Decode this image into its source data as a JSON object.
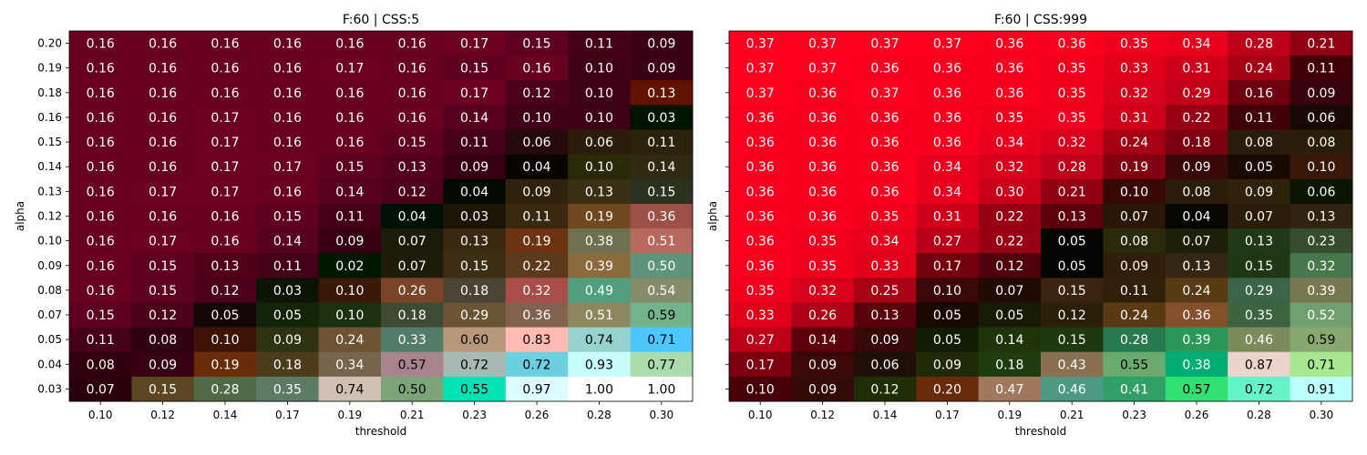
{
  "chart_data": [
    {
      "type": "heatmap",
      "title": "F:60 | CSS:5",
      "xlabel": "threshold",
      "ylabel": "alpha",
      "x_categories": [
        "0.10",
        "0.12",
        "0.14",
        "0.17",
        "0.19",
        "0.21",
        "0.23",
        "0.26",
        "0.28",
        "0.30"
      ],
      "y_categories": [
        "0.20",
        "0.19",
        "0.18",
        "0.16",
        "0.15",
        "0.14",
        "0.13",
        "0.12",
        "0.10",
        "0.09",
        "0.08",
        "0.07",
        "0.05",
        "0.04",
        "0.03"
      ],
      "values": [
        [
          0.16,
          0.16,
          0.16,
          0.16,
          0.16,
          0.16,
          0.17,
          0.15,
          0.11,
          0.09
        ],
        [
          0.16,
          0.16,
          0.16,
          0.16,
          0.17,
          0.16,
          0.15,
          0.16,
          0.1,
          0.09
        ],
        [
          0.16,
          0.16,
          0.16,
          0.16,
          0.16,
          0.16,
          0.17,
          0.12,
          0.1,
          0.13
        ],
        [
          0.16,
          0.16,
          0.17,
          0.16,
          0.16,
          0.16,
          0.14,
          0.1,
          0.1,
          0.03
        ],
        [
          0.16,
          0.16,
          0.17,
          0.16,
          0.16,
          0.15,
          0.11,
          0.06,
          0.06,
          0.11
        ],
        [
          0.16,
          0.16,
          0.17,
          0.17,
          0.15,
          0.13,
          0.09,
          0.04,
          0.1,
          0.14
        ],
        [
          0.16,
          0.17,
          0.17,
          0.16,
          0.14,
          0.12,
          0.04,
          0.09,
          0.13,
          0.15
        ],
        [
          0.16,
          0.16,
          0.16,
          0.15,
          0.11,
          0.04,
          0.03,
          0.11,
          0.19,
          0.36
        ],
        [
          0.16,
          0.17,
          0.16,
          0.14,
          0.09,
          0.07,
          0.13,
          0.19,
          0.38,
          0.51
        ],
        [
          0.16,
          0.15,
          0.13,
          0.11,
          0.02,
          0.07,
          0.15,
          0.22,
          0.39,
          0.5
        ],
        [
          0.16,
          0.15,
          0.12,
          0.03,
          0.1,
          0.26,
          0.18,
          0.32,
          0.49,
          0.54
        ],
        [
          0.15,
          0.12,
          0.05,
          0.05,
          0.1,
          0.18,
          0.29,
          0.36,
          0.51,
          0.59
        ],
        [
          0.11,
          0.08,
          0.1,
          0.09,
          0.24,
          0.33,
          0.6,
          0.83,
          0.74,
          0.71
        ],
        [
          0.08,
          0.09,
          0.19,
          0.18,
          0.34,
          0.57,
          0.72,
          0.72,
          0.93,
          0.77
        ],
        [
          0.07,
          0.15,
          0.28,
          0.35,
          0.74,
          0.5,
          0.55,
          0.97,
          1.0,
          1.0
        ]
      ],
      "cell_colors": [
        [
          "#680020",
          "#680020",
          "#680020",
          "#680020",
          "#680020",
          "#680020",
          "#6c0020",
          "#600020",
          "#440018",
          "#3a0014"
        ],
        [
          "#680020",
          "#680020",
          "#680020",
          "#680020",
          "#6c0020",
          "#680020",
          "#600020",
          "#680020",
          "#400018",
          "#3a0014"
        ],
        [
          "#680020",
          "#680020",
          "#680020",
          "#680020",
          "#680020",
          "#680020",
          "#6c0020",
          "#4c001c",
          "#3e0016",
          "#601400"
        ],
        [
          "#680020",
          "#680020",
          "#6c0020",
          "#680020",
          "#680020",
          "#680020",
          "#580020",
          "#3e0016",
          "#3e0016",
          "#001400"
        ],
        [
          "#680020",
          "#680020",
          "#6c0020",
          "#680020",
          "#680020",
          "#600020",
          "#440018",
          "#260a0a",
          "#2a1e0a",
          "#2a220a"
        ],
        [
          "#680020",
          "#680020",
          "#6c0020",
          "#6c0020",
          "#600020",
          "#52001c",
          "#360012",
          "#080402",
          "#2a2a0a",
          "#302a12"
        ],
        [
          "#680020",
          "#6c0020",
          "#6c0020",
          "#680020",
          "#580020",
          "#4c001c",
          "#040a02",
          "#30220a",
          "#3a3014",
          "#2a3220"
        ],
        [
          "#680020",
          "#680020",
          "#680020",
          "#600020",
          "#440018",
          "#001004",
          "#1c1406",
          "#3a2810",
          "#6e4820",
          "#9c5048"
        ],
        [
          "#680020",
          "#6c0020",
          "#680020",
          "#580020",
          "#360012",
          "#1c1a08",
          "#3a2a12",
          "#6e3412",
          "#6e7050",
          "#b8685c"
        ],
        [
          "#680020",
          "#600020",
          "#520018",
          "#440018",
          "#001800",
          "#1c1c08",
          "#3e2e14",
          "#5c3a1c",
          "#8c6a3c",
          "#5e9478"
        ],
        [
          "#680020",
          "#600020",
          "#4c001c",
          "#0c1406",
          "#3a1808",
          "#7a4428",
          "#4a4434",
          "#a84e48",
          "#50a080",
          "#848c6c"
        ],
        [
          "#600020",
          "#4c001c",
          "#140806",
          "#142408",
          "#1c3010",
          "#3e4a34",
          "#6a5434",
          "#80624e",
          "#8e8860",
          "#74b48c"
        ],
        [
          "#440018",
          "#300012",
          "#3e1406",
          "#303214",
          "#6c5434",
          "#527c68",
          "#b8987a",
          "#ffbcb4",
          "#98d2ce",
          "#4cc8ff"
        ],
        [
          "#30000e",
          "#360012",
          "#6a2c08",
          "#4c3c1c",
          "#78644c",
          "#a8848c",
          "#a8b8b2",
          "#6cd0e0",
          "#c8fcff",
          "#acdcac"
        ],
        [
          "#2a000c",
          "#5a4620",
          "#506a48",
          "#5c7a64",
          "#d0c0b4",
          "#7ca478",
          "#00e4b4",
          "#dcfcff",
          "#ffffff",
          "#ffffff"
        ]
      ]
    },
    {
      "type": "heatmap",
      "title": "F:60 | CSS:999",
      "xlabel": "threshold",
      "ylabel": "alpha",
      "x_categories": [
        "0.10",
        "0.12",
        "0.14",
        "0.17",
        "0.19",
        "0.21",
        "0.23",
        "0.26",
        "0.28",
        "0.30"
      ],
      "y_categories": [
        "0.20",
        "0.19",
        "0.18",
        "0.16",
        "0.15",
        "0.14",
        "0.13",
        "0.12",
        "0.10",
        "0.09",
        "0.08",
        "0.07",
        "0.05",
        "0.04",
        "0.03"
      ],
      "values": [
        [
          0.37,
          0.37,
          0.37,
          0.37,
          0.36,
          0.36,
          0.35,
          0.34,
          0.28,
          0.21
        ],
        [
          0.37,
          0.37,
          0.36,
          0.36,
          0.36,
          0.35,
          0.33,
          0.31,
          0.24,
          0.11
        ],
        [
          0.37,
          0.36,
          0.37,
          0.36,
          0.36,
          0.35,
          0.32,
          0.29,
          0.16,
          0.09
        ],
        [
          0.36,
          0.36,
          0.36,
          0.36,
          0.35,
          0.35,
          0.31,
          0.22,
          0.11,
          0.06
        ],
        [
          0.36,
          0.36,
          0.36,
          0.36,
          0.34,
          0.32,
          0.24,
          0.18,
          0.08,
          0.08
        ],
        [
          0.36,
          0.36,
          0.36,
          0.34,
          0.32,
          0.28,
          0.19,
          0.09,
          0.05,
          0.1
        ],
        [
          0.36,
          0.36,
          0.36,
          0.34,
          0.3,
          0.21,
          0.1,
          0.08,
          0.09,
          0.06
        ],
        [
          0.36,
          0.36,
          0.35,
          0.31,
          0.22,
          0.13,
          0.07,
          0.04,
          0.07,
          0.13
        ],
        [
          0.36,
          0.35,
          0.34,
          0.27,
          0.22,
          0.05,
          0.08,
          0.07,
          0.13,
          0.23
        ],
        [
          0.36,
          0.35,
          0.33,
          0.17,
          0.12,
          0.05,
          0.09,
          0.13,
          0.15,
          0.32
        ],
        [
          0.35,
          0.32,
          0.25,
          0.1,
          0.07,
          0.15,
          0.11,
          0.24,
          0.29,
          0.39
        ],
        [
          0.33,
          0.26,
          0.13,
          0.05,
          0.05,
          0.12,
          0.24,
          0.36,
          0.35,
          0.52
        ],
        [
          0.27,
          0.14,
          0.09,
          0.05,
          0.14,
          0.15,
          0.28,
          0.39,
          0.46,
          0.59
        ],
        [
          0.17,
          0.09,
          0.06,
          0.09,
          0.18,
          0.43,
          0.55,
          0.38,
          0.87,
          0.71
        ],
        [
          0.1,
          0.09,
          0.12,
          0.2,
          0.47,
          0.46,
          0.41,
          0.57,
          0.72,
          0.91
        ]
      ],
      "cell_colors": [
        [
          "#ff0020",
          "#ff0020",
          "#ff0020",
          "#ff0020",
          "#f8001e",
          "#f8001e",
          "#f0001c",
          "#e8001c",
          "#be0018",
          "#900012"
        ],
        [
          "#ff0020",
          "#ff0020",
          "#f8001e",
          "#f8001e",
          "#f8001e",
          "#f0001c",
          "#e0001a",
          "#d0001a",
          "#a40014",
          "#400008"
        ],
        [
          "#ff0020",
          "#f8001e",
          "#ff0020",
          "#f8001e",
          "#f8001e",
          "#f0001c",
          "#d8001a",
          "#c40018",
          "#6c000e",
          "#36040a"
        ],
        [
          "#f8001e",
          "#f8001e",
          "#f8001e",
          "#f8001e",
          "#f0001c",
          "#f0001c",
          "#d0001a",
          "#980014",
          "#400008",
          "#1a0804"
        ],
        [
          "#f8001e",
          "#f8001e",
          "#f8001e",
          "#f8001e",
          "#e8001c",
          "#d8001a",
          "#a40014",
          "#7c0010",
          "#2a1c0a",
          "#2a1e0a"
        ],
        [
          "#f8001e",
          "#f8001e",
          "#f8001e",
          "#e8001c",
          "#d8001a",
          "#c00018",
          "#800010",
          "#380808",
          "#180a02",
          "#3a1808"
        ],
        [
          "#f8001e",
          "#f8001e",
          "#f8001e",
          "#e8001c",
          "#c80018",
          "#900012",
          "#380804",
          "#2a1e0a",
          "#30220a",
          "#0a1604"
        ],
        [
          "#f8001e",
          "#f8001e",
          "#f0001c",
          "#d0001a",
          "#980014",
          "#5c000c",
          "#2a1606",
          "#080602",
          "#2a1e0a",
          "#302410"
        ],
        [
          "#f8001e",
          "#f0001c",
          "#e8001c",
          "#b80018",
          "#980014",
          "#040402",
          "#2a2a0a",
          "#1e2008",
          "#203814",
          "#364c2c"
        ],
        [
          "#f8001e",
          "#f0001c",
          "#e0001a",
          "#74000e",
          "#50000a",
          "#040402",
          "#301e0a",
          "#342614",
          "#1e3814",
          "#46784c"
        ],
        [
          "#f0001c",
          "#d8001a",
          "#a80014",
          "#3a0808",
          "#200a04",
          "#3a2410",
          "#30200a",
          "#5a3a14",
          "#3c6448",
          "#787850"
        ],
        [
          "#e0001a",
          "#b00016",
          "#5a000c",
          "#180a02",
          "#181a04",
          "#2a2008",
          "#5a3a14",
          "#84502c",
          "#3c6440",
          "#70a070"
        ],
        [
          "#bc0018",
          "#5c000c",
          "#360808",
          "#101c04",
          "#20340c",
          "#1e3810",
          "#287850",
          "#2c9858",
          "#7a8c5c",
          "#88a870"
        ],
        [
          "#7c0010",
          "#3a0808",
          "#1e1006",
          "#202a08",
          "#1e3c10",
          "#887050",
          "#6aaa6e",
          "#00ae74",
          "#ecd4cc",
          "#a8e890"
        ],
        [
          "#480008",
          "#340a08",
          "#202e08",
          "#682a0a",
          "#a0785c",
          "#4c9880",
          "#30a066",
          "#30e070",
          "#64f4c8",
          "#bcffff"
        ]
      ]
    }
  ]
}
